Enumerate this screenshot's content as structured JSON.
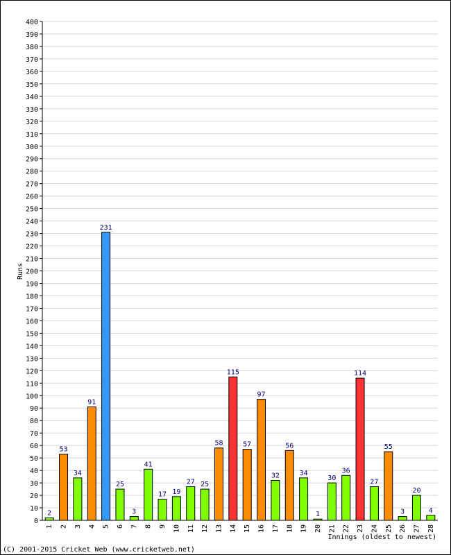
{
  "chart_data": {
    "type": "bar",
    "ylabel": "Runs",
    "xlabel": "Innings (oldest to newest)",
    "ylim": [
      0,
      400
    ],
    "ytick_step": 10,
    "grid": true,
    "categories": [
      "1",
      "2",
      "3",
      "4",
      "5",
      "6",
      "7",
      "8",
      "9",
      "10",
      "11",
      "12",
      "13",
      "14",
      "15",
      "16",
      "17",
      "18",
      "19",
      "20",
      "21",
      "22",
      "23",
      "24",
      "25",
      "26",
      "27",
      "28"
    ],
    "values": [
      2,
      53,
      34,
      91,
      231,
      25,
      3,
      41,
      17,
      19,
      27,
      25,
      58,
      115,
      57,
      97,
      32,
      56,
      34,
      1,
      30,
      36,
      114,
      27,
      55,
      3,
      20,
      4
    ],
    "bar_colors": {
      "under_50": "#80ff00",
      "50_to_99": "#ff8c00",
      "100_to_199": "#ff3333",
      "200_plus": "#3399ff"
    }
  },
  "footer": {
    "copyright": "(C) 2001-2015 Cricket Web (www.cricketweb.net)"
  }
}
